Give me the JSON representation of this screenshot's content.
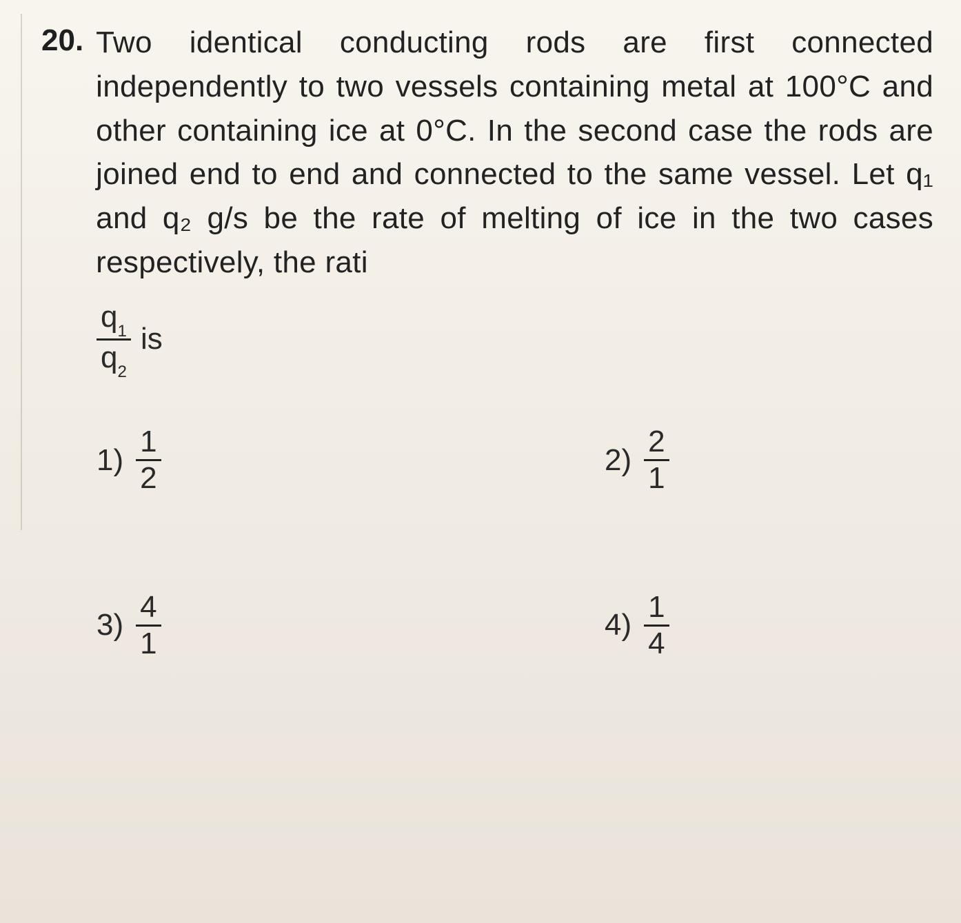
{
  "question_number": "20.",
  "question_text": "Two identical conducting rods are first connected independently to two vessels containing metal at 100°C and other containing ice at 0°C. In the second case the rods are joined end to end and connected to the same vessel. Let q₁ and q₂ g/s be the rate of melting of ice in the two cases respectively, the rati",
  "ratio_num": "q",
  "ratio_num_sub": "1",
  "ratio_den": "q",
  "ratio_den_sub": "2",
  "ratio_suffix": "is",
  "options": {
    "1": {
      "label": "1)",
      "num": "1",
      "den": "2"
    },
    "2": {
      "label": "2)",
      "num": "2",
      "den": "1"
    },
    "3": {
      "label": "3)",
      "num": "4",
      "den": "1"
    },
    "4": {
      "label": "4)",
      "num": "1",
      "den": "4"
    }
  },
  "colors": {
    "text": "#222222",
    "background": "#f0ece5",
    "bar": "#222222"
  },
  "typography": {
    "body_fontsize_pt": 33,
    "subscript_scale": 0.55,
    "font_family": "Arial"
  }
}
